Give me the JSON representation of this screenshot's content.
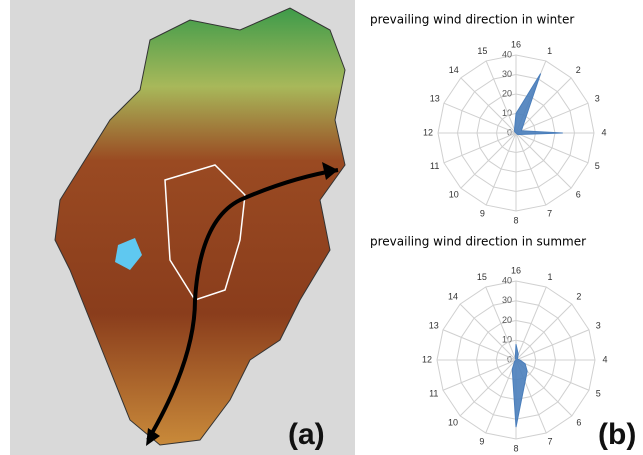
{
  "panel_labels": [
    "(a)",
    "(b)"
  ],
  "chart_data": [
    {
      "type": "radar",
      "title": "prevailing wind direction in winter",
      "categories": [
        "1",
        "2",
        "3",
        "4",
        "5",
        "6",
        "7",
        "8",
        "9",
        "10",
        "11",
        "12",
        "13",
        "14",
        "15",
        "16"
      ],
      "series": [
        {
          "color": "#4a7ebb",
          "values": [
            33,
            5,
            3,
            24,
            2,
            1,
            0,
            0,
            0,
            0,
            0,
            0,
            0,
            1,
            2,
            10
          ]
        }
      ],
      "ylim": [
        0,
        40
      ],
      "yticks": [
        0,
        10,
        20,
        30,
        40
      ],
      "grid": true
    },
    {
      "type": "radar",
      "title": "prevailing wind direction in summer",
      "categories": [
        "1",
        "2",
        "3",
        "4",
        "5",
        "6",
        "7",
        "8",
        "9",
        "10",
        "11",
        "12",
        "13",
        "14",
        "15",
        "16"
      ],
      "series": [
        {
          "color": "#4a7ebb",
          "values": [
            3,
            1,
            1,
            2,
            5,
            8,
            12,
            34,
            5,
            1,
            0,
            0,
            0,
            0,
            1,
            8
          ]
        }
      ],
      "ylim": [
        0,
        40
      ],
      "yticks": [
        0,
        10,
        20,
        30,
        40
      ],
      "grid": true
    }
  ]
}
